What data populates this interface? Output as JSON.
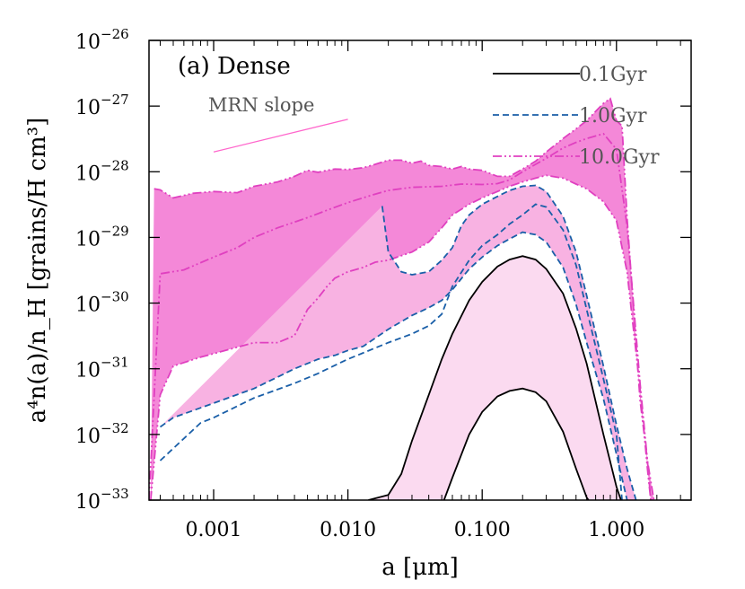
{
  "chart_data": {
    "type": "area",
    "title": "(a) Dense",
    "xlabel": "a [μm]",
    "ylabel": "a⁴n(a)/n_H [grains/H cm³]",
    "xscale": "log",
    "yscale": "log",
    "xlim": [
      0.00033,
      3.6
    ],
    "ylim": [
      1e-33,
      1e-26
    ],
    "x_ticks": [
      {
        "value": 0.001,
        "label": "0.001"
      },
      {
        "value": 0.01,
        "label": "0.010"
      },
      {
        "value": 0.1,
        "label": "0.100"
      },
      {
        "value": 1.0,
        "label": "1.000"
      }
    ],
    "y_ticks": [
      {
        "value": 1e-26,
        "base": "10",
        "exp": "−26"
      },
      {
        "value": 1e-27,
        "base": "10",
        "exp": "−27"
      },
      {
        "value": 1e-28,
        "base": "10",
        "exp": "−28"
      },
      {
        "value": 1e-29,
        "base": "10",
        "exp": "−29"
      },
      {
        "value": 1e-30,
        "base": "10",
        "exp": "−30"
      },
      {
        "value": 1e-31,
        "base": "10",
        "exp": "−31"
      },
      {
        "value": 1e-32,
        "base": "10",
        "exp": "−32"
      },
      {
        "value": 1e-33,
        "base": "10",
        "exp": "−33"
      }
    ],
    "annotation": {
      "text": "MRN slope",
      "x": [
        0.001,
        0.01
      ],
      "y": [
        2e-28,
        6.3e-28
      ],
      "color": "#ff66cc"
    },
    "legend_position": "top-right",
    "series": [
      {
        "name": "0.1Gyr",
        "style": "solid",
        "line_color": "#000000",
        "fill_color": "#fbdaf0",
        "upper": [
          [
            0.0142,
            1e-33
          ],
          [
            0.02,
            1.2e-33
          ],
          [
            0.025,
            2.5e-33
          ],
          [
            0.03,
            8e-33
          ],
          [
            0.04,
            4e-32
          ],
          [
            0.05,
            1.4e-31
          ],
          [
            0.06,
            3.4e-31
          ],
          [
            0.08,
            1.1e-30
          ],
          [
            0.1,
            2.1e-30
          ],
          [
            0.13,
            3.6e-30
          ],
          [
            0.16,
            4.6e-30
          ],
          [
            0.2,
            5.2e-30
          ],
          [
            0.25,
            4.6e-30
          ],
          [
            0.3,
            3.3e-30
          ],
          [
            0.4,
            1.4e-30
          ],
          [
            0.5,
            4.1e-31
          ],
          [
            0.6,
            1.2e-31
          ],
          [
            0.8,
            1e-32
          ],
          [
            1.0,
            1.6e-33
          ],
          [
            1.08,
            1e-33
          ]
        ],
        "lower": [
          [
            0.052,
            1e-33
          ],
          [
            0.06,
            2.2e-33
          ],
          [
            0.08,
            1e-32
          ],
          [
            0.1,
            2.2e-32
          ],
          [
            0.13,
            3.8e-32
          ],
          [
            0.16,
            4.6e-32
          ],
          [
            0.2,
            5e-32
          ],
          [
            0.25,
            4.4e-32
          ],
          [
            0.3,
            3.2e-32
          ],
          [
            0.4,
            1.1e-32
          ],
          [
            0.5,
            3e-33
          ],
          [
            0.6,
            1.1e-33
          ],
          [
            0.62,
            1e-33
          ]
        ]
      },
      {
        "name": "1.0Gyr",
        "style": "dashed",
        "line_color": "#1a5fa8",
        "fill_color": "#f8b2e2",
        "upper": [
          [
            0.018,
            3e-29
          ],
          [
            0.02,
            6e-30
          ],
          [
            0.025,
            3e-30
          ],
          [
            0.03,
            2.7e-30
          ],
          [
            0.04,
            3e-30
          ],
          [
            0.05,
            4.5e-30
          ],
          [
            0.06,
            7e-30
          ],
          [
            0.07,
            1.5e-29
          ],
          [
            0.08,
            2.2e-29
          ],
          [
            0.1,
            3.2e-29
          ],
          [
            0.13,
            4.2e-29
          ],
          [
            0.16,
            5.2e-29
          ],
          [
            0.2,
            6e-29
          ],
          [
            0.25,
            6.2e-29
          ],
          [
            0.3,
            5e-29
          ],
          [
            0.4,
            2.1e-29
          ],
          [
            0.5,
            6e-30
          ],
          [
            0.6,
            1.3e-30
          ],
          [
            0.8,
            1.1e-31
          ],
          [
            1.0,
            1.4e-32
          ],
          [
            1.2,
            3e-33
          ],
          [
            1.4,
            1e-33
          ]
        ],
        "middle": [
          [
            0.0004,
            4e-33
          ],
          [
            0.0008,
            1.5e-32
          ],
          [
            0.001,
            1.8e-32
          ],
          [
            0.002,
            3.6e-32
          ],
          [
            0.004,
            6e-32
          ],
          [
            0.006,
            8.5e-32
          ],
          [
            0.01,
            1.4e-31
          ],
          [
            0.02,
            2.5e-31
          ],
          [
            0.03,
            3.4e-31
          ],
          [
            0.04,
            4.5e-31
          ],
          [
            0.05,
            6.8e-31
          ],
          [
            0.06,
            1.8e-30
          ],
          [
            0.08,
            4.5e-30
          ],
          [
            0.1,
            7.5e-30
          ],
          [
            0.13,
            1.1e-29
          ],
          [
            0.16,
            1.6e-29
          ],
          [
            0.2,
            2.2e-29
          ],
          [
            0.25,
            3.2e-29
          ],
          [
            0.3,
            2.9e-29
          ],
          [
            0.4,
            1.3e-29
          ],
          [
            0.5,
            3.8e-30
          ],
          [
            0.6,
            8e-31
          ],
          [
            0.8,
            7e-32
          ],
          [
            1.0,
            1e-32
          ],
          [
            1.1,
            1e-33
          ]
        ],
        "lower": [
          [
            0.0004,
            1.3e-32
          ],
          [
            0.0005,
            1.8e-32
          ],
          [
            0.001,
            3e-32
          ],
          [
            0.002,
            5e-32
          ],
          [
            0.004,
            1e-31
          ],
          [
            0.006,
            1.4e-31
          ],
          [
            0.008,
            1.6e-31
          ],
          [
            0.01,
            1.9e-31
          ],
          [
            0.013,
            2.2e-31
          ],
          [
            0.02,
            4e-31
          ],
          [
            0.03,
            6.5e-31
          ],
          [
            0.04,
            8.5e-31
          ],
          [
            0.05,
            1.1e-30
          ],
          [
            0.06,
            1.6e-30
          ],
          [
            0.08,
            3.3e-30
          ],
          [
            0.1,
            5e-30
          ],
          [
            0.13,
            7.5e-30
          ],
          [
            0.16,
            9.5e-30
          ],
          [
            0.2,
            1.2e-29
          ],
          [
            0.25,
            1.1e-29
          ],
          [
            0.3,
            8.5e-30
          ],
          [
            0.4,
            3.5e-30
          ],
          [
            0.5,
            9.5e-31
          ],
          [
            0.6,
            2.5e-31
          ],
          [
            0.8,
            3.5e-32
          ],
          [
            1.0,
            5e-33
          ],
          [
            1.2,
            1e-33
          ]
        ]
      },
      {
        "name": "10.0Gyr",
        "style": "dash-dot-dot",
        "line_color": "#e040c0",
        "fill_color": "#f488d8",
        "upper": [
          [
            0.00036,
            5.5e-29
          ],
          [
            0.0004,
            5.3e-29
          ],
          [
            0.0005,
            4e-29
          ],
          [
            0.0007,
            4.7e-29
          ],
          [
            0.001,
            5e-29
          ],
          [
            0.0015,
            4.8e-29
          ],
          [
            0.002,
            6e-29
          ],
          [
            0.003,
            7e-29
          ],
          [
            0.004,
            8.5e-29
          ],
          [
            0.005,
            1.05e-28
          ],
          [
            0.006,
            9.8e-29
          ],
          [
            0.007,
            1.05e-28
          ],
          [
            0.008,
            1.1e-28
          ],
          [
            0.01,
            1.08e-28
          ],
          [
            0.013,
            1.15e-28
          ],
          [
            0.016,
            1.3e-28
          ],
          [
            0.02,
            1.5e-28
          ],
          [
            0.025,
            1.5e-28
          ],
          [
            0.03,
            1.35e-28
          ],
          [
            0.035,
            1.45e-28
          ],
          [
            0.04,
            1.25e-28
          ],
          [
            0.05,
            1.2e-28
          ],
          [
            0.06,
            1.1e-28
          ],
          [
            0.07,
            1.2e-28
          ],
          [
            0.08,
            1.1e-28
          ],
          [
            0.1,
            1.05e-28
          ],
          [
            0.13,
            8.5e-29
          ],
          [
            0.16,
            8.5e-29
          ],
          [
            0.2,
            1.1e-28
          ],
          [
            0.25,
            1.45e-28
          ],
          [
            0.3,
            2e-28
          ],
          [
            0.4,
            3.2e-28
          ],
          [
            0.5,
            4.5e-28
          ],
          [
            0.6,
            6e-28
          ],
          [
            0.8,
            1.1e-27
          ],
          [
            0.9,
            1.3e-27
          ],
          [
            1.0,
            6e-28
          ],
          [
            1.1,
            5e-28
          ],
          [
            1.2,
            2e-29
          ],
          [
            1.5,
            3.3e-32
          ],
          [
            1.7,
            4e-33
          ],
          [
            1.9,
            1e-33
          ]
        ],
        "middle": [
          [
            0.00033,
            1e-33
          ],
          [
            0.0004,
            2.8e-30
          ],
          [
            0.0006,
            3.2e-30
          ],
          [
            0.001,
            5e-30
          ],
          [
            0.0015,
            7e-30
          ],
          [
            0.002,
            1e-29
          ],
          [
            0.003,
            1.4e-29
          ],
          [
            0.005,
            2e-29
          ],
          [
            0.007,
            2.6e-29
          ],
          [
            0.01,
            3.4e-29
          ],
          [
            0.015,
            4.4e-29
          ],
          [
            0.02,
            5.2e-29
          ],
          [
            0.03,
            5.8e-29
          ],
          [
            0.05,
            6e-29
          ],
          [
            0.07,
            6.5e-29
          ],
          [
            0.1,
            6.4e-29
          ],
          [
            0.13,
            6.6e-29
          ],
          [
            0.16,
            7.5e-29
          ],
          [
            0.2,
            1e-28
          ],
          [
            0.25,
            1.3e-28
          ],
          [
            0.3,
            1.6e-28
          ],
          [
            0.4,
            2.3e-28
          ],
          [
            0.5,
            2.8e-28
          ],
          [
            0.6,
            3.2e-28
          ],
          [
            0.8,
            3.8e-28
          ],
          [
            1.0,
            2.2e-28
          ],
          [
            1.2,
            1.5e-29
          ],
          [
            1.5,
            6e-32
          ],
          [
            1.7,
            4e-33
          ],
          [
            1.8,
            1e-33
          ]
        ],
        "lower": [
          [
            0.00034,
            1e-33
          ],
          [
            0.0004,
            4e-32
          ],
          [
            0.0005,
            1.1e-31
          ],
          [
            0.0008,
            1.5e-31
          ],
          [
            0.001,
            1.7e-31
          ],
          [
            0.002,
            2.5e-31
          ],
          [
            0.003,
            2.5e-31
          ],
          [
            0.004,
            3.2e-31
          ],
          [
            0.005,
            8e-31
          ],
          [
            0.006,
            1.2e-30
          ],
          [
            0.007,
            1.8e-30
          ],
          [
            0.008,
            2.4e-30
          ],
          [
            0.01,
            3e-30
          ],
          [
            0.013,
            3.5e-30
          ],
          [
            0.016,
            4.2e-30
          ],
          [
            0.02,
            4.5e-30
          ],
          [
            0.03,
            6e-30
          ],
          [
            0.04,
            8.5e-30
          ],
          [
            0.05,
            1.4e-29
          ],
          [
            0.06,
            2.2e-29
          ],
          [
            0.08,
            3.2e-29
          ],
          [
            0.1,
            4e-29
          ],
          [
            0.13,
            5e-29
          ],
          [
            0.16,
            6e-29
          ],
          [
            0.2,
            7e-29
          ],
          [
            0.25,
            8e-29
          ],
          [
            0.3,
            8.8e-29
          ],
          [
            0.4,
            8e-29
          ],
          [
            0.5,
            6.5e-29
          ],
          [
            0.6,
            5.5e-29
          ],
          [
            0.8,
            3.5e-29
          ],
          [
            1.0,
            1.8e-29
          ],
          [
            1.2,
            3e-30
          ],
          [
            1.5,
            5e-32
          ],
          [
            1.7,
            3e-33
          ],
          [
            1.8,
            1e-33
          ]
        ]
      }
    ]
  }
}
